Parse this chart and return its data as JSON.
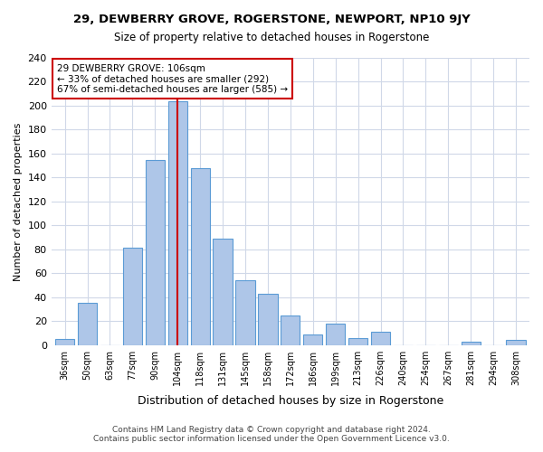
{
  "title": "29, DEWBERRY GROVE, ROGERSTONE, NEWPORT, NP10 9JY",
  "subtitle": "Size of property relative to detached houses in Rogerstone",
  "xlabel": "Distribution of detached houses by size in Rogerstone",
  "ylabel": "Number of detached properties",
  "bar_labels": [
    "36sqm",
    "50sqm",
    "63sqm",
    "77sqm",
    "90sqm",
    "104sqm",
    "118sqm",
    "131sqm",
    "145sqm",
    "158sqm",
    "172sqm",
    "186sqm",
    "199sqm",
    "213sqm",
    "226sqm",
    "240sqm",
    "254sqm",
    "267sqm",
    "281sqm",
    "294sqm",
    "308sqm"
  ],
  "bar_values": [
    5,
    35,
    0,
    81,
    155,
    204,
    148,
    89,
    54,
    43,
    25,
    9,
    18,
    6,
    11,
    0,
    0,
    0,
    3,
    0,
    4
  ],
  "bar_color": "#aec6e8",
  "bar_edge_color": "#5b9bd5",
  "reference_line_x": 5,
  "annotation_title": "29 DEWBERRY GROVE: 106sqm",
  "annotation_line1": "← 33% of detached houses are smaller (292)",
  "annotation_line2": "67% of semi-detached houses are larger (585) →",
  "annotation_box_color": "#ffffff",
  "annotation_box_edge_color": "#cc0000",
  "ref_line_color": "#cc0000",
  "ylim": [
    0,
    240
  ],
  "yticks": [
    0,
    20,
    40,
    60,
    80,
    100,
    120,
    140,
    160,
    180,
    200,
    220,
    240
  ],
  "footer_line1": "Contains HM Land Registry data © Crown copyright and database right 2024.",
  "footer_line2": "Contains public sector information licensed under the Open Government Licence v3.0.",
  "bg_color": "#ffffff",
  "grid_color": "#d0d8e8"
}
